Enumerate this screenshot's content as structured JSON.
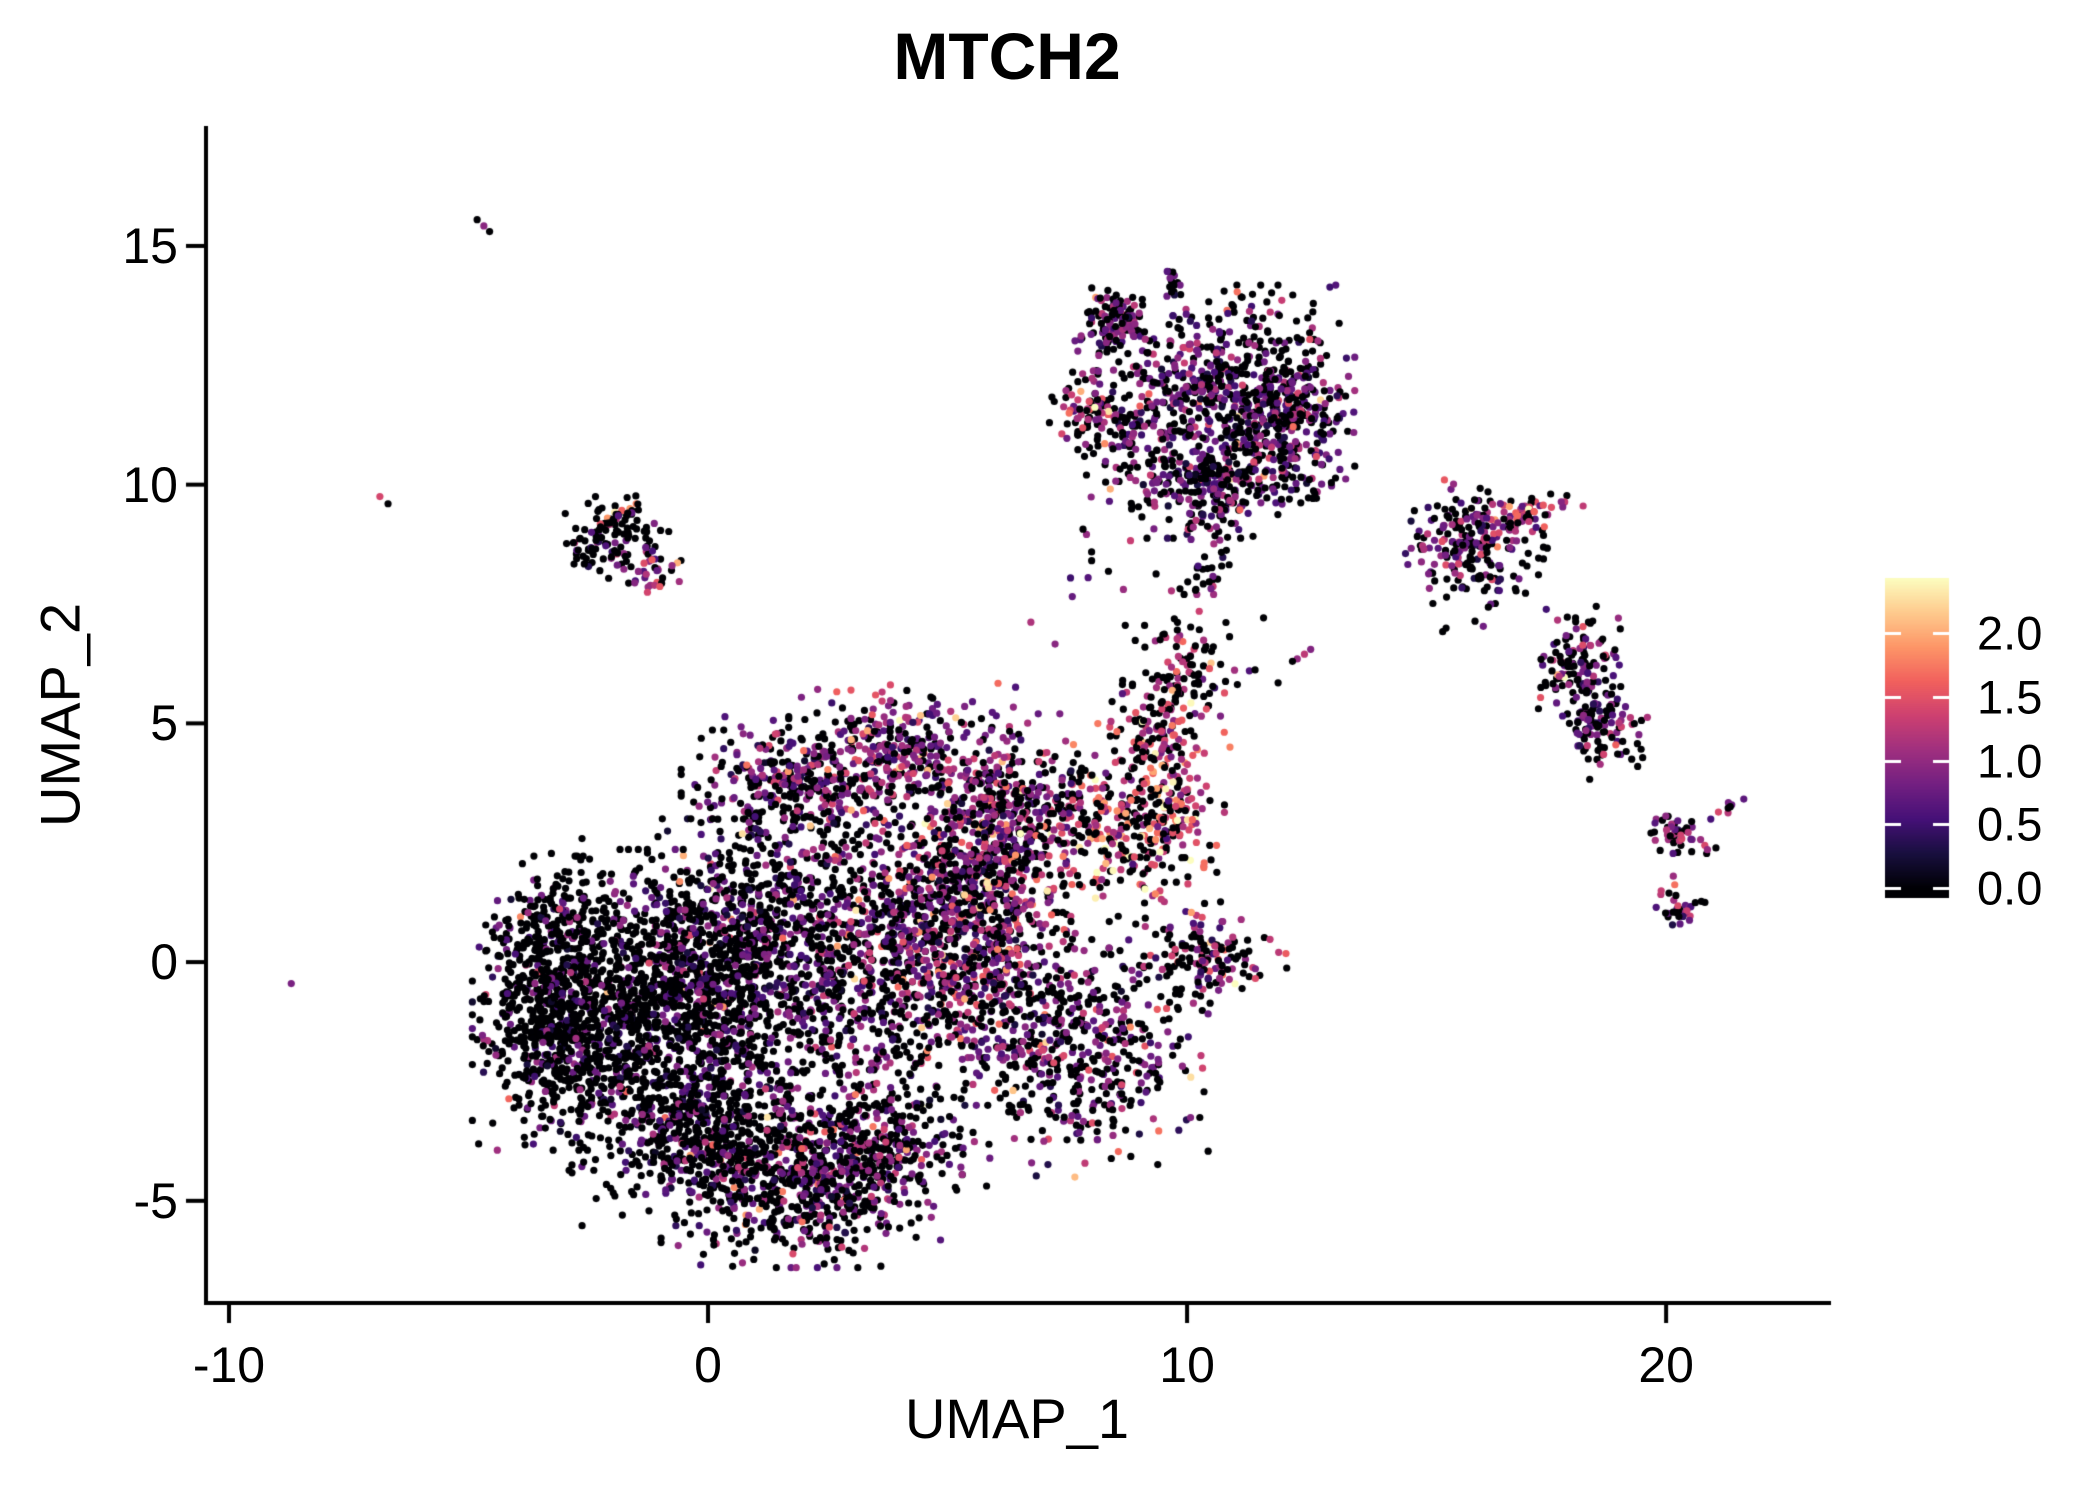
{
  "figure": {
    "title": "MTCH2"
  },
  "chart_data": {
    "type": "scatter",
    "title": "MTCH2",
    "xlabel": "UMAP_1",
    "ylabel": "UMAP_2",
    "x_ticks": {
      "values": [
        -10,
        0,
        10,
        20
      ],
      "labels": [
        "-10",
        "0",
        "10",
        "20"
      ]
    },
    "y_ticks": {
      "values": [
        -5,
        0,
        5,
        10,
        15
      ],
      "labels": [
        "-5",
        "0",
        "5",
        "10",
        "15"
      ]
    },
    "x_range": [
      -10.48,
      23.4
    ],
    "y_range": [
      -7.14,
      17.47
    ],
    "grid": false,
    "legend_position": "right",
    "point_radius_px": 3.6,
    "seed": 7,
    "colorbar": {
      "palette": "magma",
      "stops": [
        "#000004",
        "#180f3e",
        "#451077",
        "#721f81",
        "#9f2f7f",
        "#cd4071",
        "#f1605d",
        "#fd9567",
        "#feca8d",
        "#fcfdbf"
      ],
      "domain": [
        0,
        2.43
      ],
      "ticks": {
        "values": [
          0,
          0.5,
          1,
          1.5,
          2
        ],
        "labels": [
          "0.0",
          "0.5",
          "1.0",
          "1.5",
          "2.0"
        ]
      }
    },
    "clusters": [
      {
        "name": "main-left-wedge",
        "n": 650,
        "cx": -3.0,
        "cy": -1.3,
        "sx": 0.8,
        "sy": 1.1,
        "p0": 0.8,
        "mean": 0.7,
        "spread": 0.4,
        "high": 0.05
      },
      {
        "name": "main-left-upper",
        "n": 250,
        "cx": -3.2,
        "cy": 0.3,
        "sx": 0.6,
        "sy": 0.8,
        "p0": 0.82,
        "mean": 0.7,
        "spread": 0.4,
        "high": 0.03
      },
      {
        "name": "main-black-mid",
        "n": 700,
        "cx": -1.2,
        "cy": -1.0,
        "sx": 1.0,
        "sy": 1.4,
        "p0": 0.78,
        "mean": 0.7,
        "spread": 0.4,
        "high": 0.05
      },
      {
        "name": "main-mid",
        "n": 550,
        "cx": 0.3,
        "cy": -0.6,
        "sx": 0.9,
        "sy": 1.5,
        "p0": 0.7,
        "mean": 0.75,
        "spread": 0.45,
        "high": 0.05
      },
      {
        "name": "main-bottom-mid",
        "n": 420,
        "cx": -0.2,
        "cy": -3.6,
        "sx": 1.1,
        "sy": 0.8,
        "p0": 0.72,
        "mean": 0.7,
        "spread": 0.4,
        "high": 0.04
      },
      {
        "name": "main-bottom-lobe",
        "n": 520,
        "cx": 1.9,
        "cy": -4.6,
        "sx": 1.2,
        "sy": 0.75,
        "p0": 0.6,
        "mean": 0.8,
        "spread": 0.45,
        "high": 0.05
      },
      {
        "name": "main-bottom-right",
        "n": 300,
        "cx": 3.4,
        "cy": -4.0,
        "sx": 0.9,
        "sy": 0.7,
        "p0": 0.55,
        "mean": 0.85,
        "spread": 0.45,
        "high": 0.05
      },
      {
        "name": "main-center-belt",
        "n": 650,
        "cx": 1.8,
        "cy": 0.6,
        "sx": 1.4,
        "sy": 1.2,
        "p0": 0.6,
        "mean": 0.8,
        "spread": 0.45,
        "high": 0.05
      },
      {
        "name": "main-upperleft-clump",
        "n": 280,
        "cx": 1.6,
        "cy": 3.7,
        "sx": 0.9,
        "sy": 0.6,
        "p0": 0.5,
        "mean": 0.85,
        "spread": 0.45,
        "high": 0.05
      },
      {
        "name": "main-dome",
        "n": 330,
        "cx": 3.9,
        "cy": 4.4,
        "sx": 1.05,
        "sy": 0.6,
        "p0": 0.4,
        "mean": 0.9,
        "spread": 0.45,
        "high": 0.06
      },
      {
        "name": "main-center-right",
        "n": 800,
        "cx": 4.6,
        "cy": 0.6,
        "sx": 1.2,
        "sy": 1.5,
        "p0": 0.45,
        "mean": 0.9,
        "spread": 0.5,
        "high": 0.07
      },
      {
        "name": "main-dense-ridge",
        "n": 500,
        "cx": 5.9,
        "cy": 1.6,
        "sx": 0.7,
        "sy": 1.5,
        "p0": 0.4,
        "mean": 0.95,
        "spread": 0.5,
        "high": 0.06
      },
      {
        "name": "main-knot",
        "n": 160,
        "cx": 6.3,
        "cy": 3.4,
        "sx": 0.6,
        "sy": 0.5,
        "p0": 0.45,
        "mean": 0.9,
        "spread": 0.45,
        "high": 0.05
      },
      {
        "name": "main-right-lobe",
        "n": 500,
        "cx": 7.8,
        "cy": -1.6,
        "sx": 1.1,
        "sy": 1.1,
        "p0": 0.52,
        "mean": 0.9,
        "spread": 0.5,
        "high": 0.06
      },
      {
        "name": "main-right-hook",
        "n": 130,
        "cx": 10.4,
        "cy": 0.1,
        "sx": 0.7,
        "sy": 0.4,
        "p0": 0.5,
        "mean": 1.0,
        "spread": 0.5,
        "high": 0.08
      },
      {
        "name": "main-fill",
        "n": 350,
        "cx": 2.5,
        "cy": -1.5,
        "sx": 2.2,
        "sy": 1.8,
        "p0": 0.65,
        "mean": 0.8,
        "spread": 0.45,
        "high": 0.05
      },
      {
        "name": "arm",
        "n": 380,
        "cx": 8.5,
        "cy": 3.0,
        "sx": 0.95,
        "sy": 0.85,
        "p0": 0.4,
        "mean": 1.25,
        "spread": 0.5,
        "high": 0.12
      },
      {
        "name": "arm-hot-edge",
        "n": 90,
        "cx": 9.7,
        "cy": 3.2,
        "sx": 0.35,
        "sy": 0.75,
        "p0": 0.25,
        "mean": 1.5,
        "spread": 0.45,
        "high": 0.18
      },
      {
        "name": "arm-bridge",
        "n": 60,
        "cx": 9.4,
        "cy": 4.7,
        "sx": 0.45,
        "sy": 0.5,
        "p0": 0.45,
        "mean": 1.2,
        "spread": 0.45,
        "high": 0.1
      },
      {
        "name": "neck",
        "n": 130,
        "cx": 9.85,
        "cy": 5.9,
        "sx": 0.5,
        "sy": 0.75,
        "p0": 0.6,
        "mean": 1.1,
        "spread": 0.5,
        "high": 0.1
      },
      {
        "name": "strays-mid",
        "n": 22,
        "cx": 9.2,
        "cy": 7.8,
        "sx": 1.3,
        "sy": 0.7,
        "p0": 0.75,
        "mean": 0.9,
        "spread": 0.4,
        "high": 0
      },
      {
        "name": "top-core",
        "n": 650,
        "cx": 10.6,
        "cy": 11.9,
        "sx": 1.2,
        "sy": 0.95,
        "p0": 0.5,
        "mean": 0.8,
        "spread": 0.45,
        "high": 0.04
      },
      {
        "name": "top-left-knot",
        "n": 120,
        "cx": 8.5,
        "cy": 13.4,
        "sx": 0.35,
        "sy": 0.3,
        "p0": 0.42,
        "mean": 0.85,
        "spread": 0.45,
        "high": 0.06
      },
      {
        "name": "top-tail-up",
        "n": 14,
        "cx": 9.7,
        "cy": 14.25,
        "sx": 0.12,
        "sy": 0.3,
        "p0": 0.55,
        "mean": 0.8,
        "spread": 0.4,
        "high": 0
      },
      {
        "name": "top-left-arm",
        "n": 90,
        "cx": 8.1,
        "cy": 11.5,
        "sx": 0.45,
        "sy": 0.35,
        "angle": -20,
        "p0": 0.45,
        "mean": 1.0,
        "spread": 0.5,
        "high": 0.1
      },
      {
        "name": "top-right-edge",
        "n": 200,
        "cx": 12.3,
        "cy": 11.6,
        "sx": 0.5,
        "sy": 0.8,
        "p0": 0.45,
        "mean": 0.85,
        "spread": 0.45,
        "high": 0.04
      },
      {
        "name": "top-bottom-lobe",
        "n": 250,
        "cx": 10.3,
        "cy": 10.2,
        "sx": 1.0,
        "sy": 0.55,
        "p0": 0.5,
        "mean": 0.8,
        "spread": 0.45,
        "high": 0.04
      },
      {
        "name": "top-tail-down",
        "n": 55,
        "cx": 10.55,
        "cy": 9.0,
        "sx": 0.22,
        "sy": 0.65,
        "p0": 0.6,
        "mean": 0.75,
        "spread": 0.4,
        "high": 0
      },
      {
        "name": "right-a-body",
        "n": 170,
        "cx": 16.0,
        "cy": 8.9,
        "sx": 0.6,
        "sy": 0.5,
        "p0": 0.5,
        "mean": 0.85,
        "spread": 0.45,
        "high": 0.05
      },
      {
        "name": "right-a-tail",
        "n": 55,
        "cx": 17.0,
        "cy": 9.35,
        "sx": 0.55,
        "sy": 0.18,
        "angle": 20,
        "p0": 0.35,
        "mean": 1.2,
        "spread": 0.5,
        "high": 0.15
      },
      {
        "name": "right-a-below",
        "n": 45,
        "cx": 16.2,
        "cy": 8.0,
        "sx": 0.55,
        "sy": 0.45,
        "p0": 0.75,
        "mean": 0.7,
        "spread": 0.4,
        "high": 0
      },
      {
        "name": "right-b-upper",
        "n": 120,
        "cx": 18.2,
        "cy": 6.3,
        "sx": 0.4,
        "sy": 0.5,
        "angle": -15,
        "p0": 0.55,
        "mean": 0.85,
        "spread": 0.45,
        "high": 0.05
      },
      {
        "name": "right-b-lower",
        "n": 110,
        "cx": 18.6,
        "cy": 5.0,
        "sx": 0.42,
        "sy": 0.45,
        "angle": 15,
        "p0": 0.55,
        "mean": 0.85,
        "spread": 0.45,
        "high": 0.05
      },
      {
        "name": "right-b-tip",
        "points": [
          [
            18.95,
            4.55,
            1.6
          ],
          [
            19.05,
            4.35,
            0.7
          ]
        ]
      },
      {
        "name": "br-top",
        "n": 45,
        "cx": 20.2,
        "cy": 2.6,
        "sx": 0.35,
        "sy": 0.25,
        "p0": 0.5,
        "mean": 0.9,
        "spread": 0.45,
        "high": 0
      },
      {
        "name": "br-bottom",
        "n": 30,
        "cx": 20.3,
        "cy": 1.1,
        "sx": 0.22,
        "sy": 0.18,
        "p0": 0.45,
        "mean": 0.9,
        "spread": 0.45,
        "high": 0
      },
      {
        "name": "br-middle-dots",
        "points": [
          [
            20.15,
            1.8,
            1.05
          ],
          [
            20.18,
            1.62,
            1.7
          ]
        ]
      },
      {
        "name": "br-streak",
        "n": 7,
        "cx": 21.35,
        "cy": 3.3,
        "sx": 0.22,
        "sy": 0.06,
        "angle": 40,
        "p0": 0.25,
        "mean": 1.0,
        "spread": 0.4,
        "high": 0
      },
      {
        "name": "left-small-body",
        "n": 90,
        "cx": -1.9,
        "cy": 9.0,
        "sx": 0.45,
        "sy": 0.4,
        "p0": 0.75,
        "mean": 0.8,
        "spread": 0.4,
        "high": 0
      },
      {
        "name": "left-small-arm",
        "n": 25,
        "cx": -2.6,
        "cy": 8.6,
        "sx": 0.35,
        "sy": 0.18,
        "angle": -25,
        "p0": 0.9,
        "mean": 0.7,
        "spread": 0.3,
        "high": 0
      },
      {
        "name": "left-small-hot",
        "points": [
          [
            -2.25,
            9.18,
            1.5
          ],
          [
            -2.1,
            9.3,
            1.9
          ],
          [
            -1.95,
            9.42,
            2.35
          ],
          [
            -1.8,
            9.46,
            1.6
          ],
          [
            -1.63,
            9.5,
            1.9
          ],
          [
            -1.5,
            9.6,
            1.8
          ],
          [
            -2.02,
            9.28,
            0
          ],
          [
            -1.7,
            9.35,
            0
          ]
        ]
      },
      {
        "name": "left-small-purple",
        "n": 35,
        "cx": -1.15,
        "cy": 8.25,
        "sx": 0.3,
        "sy": 0.22,
        "p0": 0.3,
        "mean": 1.0,
        "spread": 0.4,
        "high": 0.06
      },
      {
        "name": "tiny-streak-topleft",
        "points": [
          [
            -4.82,
            15.55,
            0
          ],
          [
            -4.68,
            15.42,
            0.95
          ],
          [
            -4.56,
            15.3,
            0
          ]
        ]
      },
      {
        "name": "tiny-pair-left",
        "points": [
          [
            -6.85,
            9.75,
            1.4
          ],
          [
            -6.68,
            9.6,
            0
          ]
        ]
      },
      {
        "name": "isolated-dot",
        "points": [
          [
            -8.7,
            -0.45,
            0.85
          ]
        ]
      },
      {
        "name": "mid-streak-dots",
        "points": [
          [
            12.3,
            6.35,
            1.0
          ],
          [
            12.45,
            6.45,
            1.25
          ],
          [
            12.58,
            6.55,
            0.9
          ],
          [
            12.2,
            6.3,
            0
          ],
          [
            11.9,
            5.85,
            0
          ],
          [
            11.3,
            6.1,
            0.6
          ]
        ]
      }
    ]
  }
}
